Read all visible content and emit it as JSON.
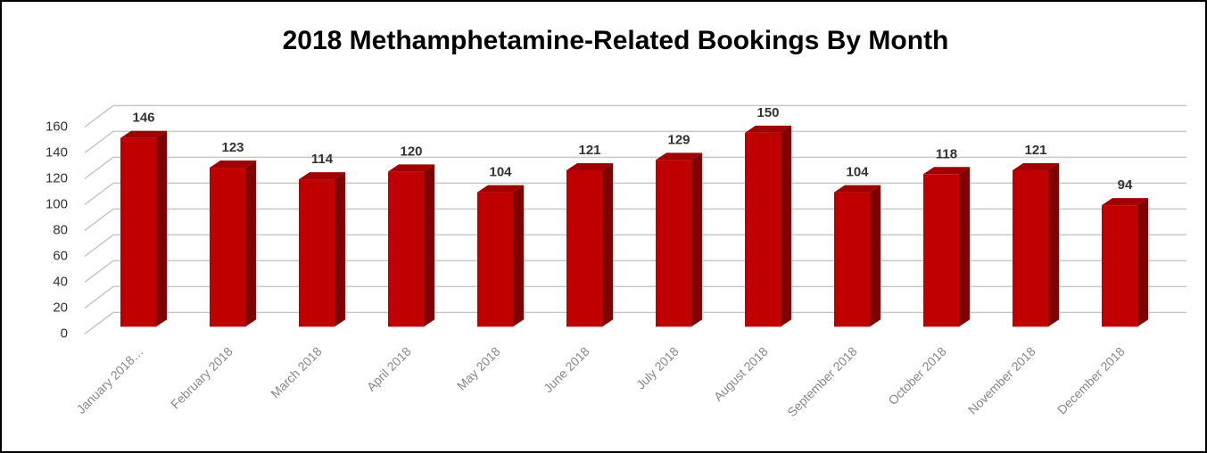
{
  "chart_data": {
    "type": "bar3d",
    "title": "2018 Methamphetamine-Related Bookings By Month",
    "categories": [
      "January 2018…",
      "February 2018",
      "March 2018",
      "April 2018",
      "May 2018",
      "June 2018",
      "July 2018",
      "August 2018",
      "September 2018",
      "October 2018",
      "November 2018",
      "December 2018"
    ],
    "values": [
      146,
      123,
      114,
      120,
      104,
      121,
      129,
      150,
      104,
      118,
      121,
      94
    ],
    "color": "#c00000",
    "ylim": [
      0,
      160
    ],
    "yticks": [
      0,
      20,
      40,
      60,
      80,
      100,
      120,
      140,
      160
    ],
    "grid": true
  }
}
